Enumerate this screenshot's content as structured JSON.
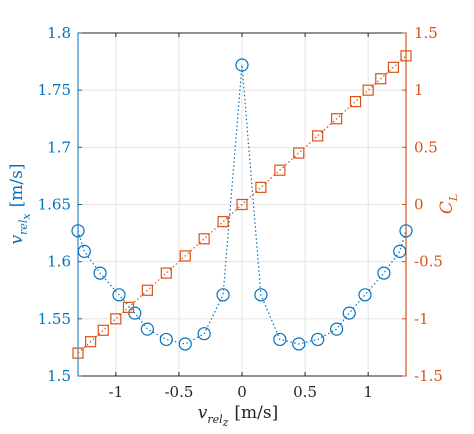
{
  "chart_data": {
    "type": "line",
    "title": "",
    "xlabel": {
      "var": "v",
      "sub": "rel",
      "subsub": "z",
      "unit": "[m/s]"
    },
    "ylabel_left": {
      "var": "v",
      "sub": "rel",
      "subsub": "x",
      "unit": "[m/s]"
    },
    "ylabel_right": {
      "var": "C",
      "sub": "L"
    },
    "xlim": [
      -1.3,
      1.3
    ],
    "ylim_left": [
      1.5,
      1.8
    ],
    "ylim_right": [
      -1.5,
      1.5
    ],
    "xticks": [
      -1,
      -0.5,
      0,
      0.5,
      1
    ],
    "xtick_labels": [
      "-1",
      "-0.5",
      "0",
      "0.5",
      "1"
    ],
    "yticks_left": [
      1.5,
      1.55,
      1.6,
      1.65,
      1.7,
      1.75,
      1.8
    ],
    "ytick_labels_left": [
      "1.5",
      "1.55",
      "1.6",
      "1.65",
      "1.7",
      "1.75",
      "1.8"
    ],
    "yticks_right": [
      -1.5,
      -1,
      -0.5,
      0,
      0.5,
      1,
      1.5
    ],
    "ytick_labels_right": [
      "-1.5",
      "-1",
      "-0.5",
      "0",
      "0.5",
      "1",
      "1.5"
    ],
    "grid": true,
    "colors": {
      "left": "#0072BD",
      "right": "#D95319",
      "grid": "#e4e4e4"
    },
    "series": [
      {
        "axis": "left",
        "marker": "circle",
        "line": "dotted",
        "x": [
          -1.3,
          -1.25,
          -1.125,
          -0.975,
          -0.85,
          -0.75,
          -0.6,
          -0.45,
          -0.3,
          -0.15,
          0,
          0.15,
          0.3,
          0.45,
          0.6,
          0.75,
          0.85,
          0.975,
          1.125,
          1.25,
          1.3
        ],
        "y": [
          1.627,
          1.609,
          1.59,
          1.571,
          1.555,
          1.541,
          1.532,
          1.528,
          1.537,
          1.571,
          1.772,
          1.571,
          1.532,
          1.528,
          1.532,
          1.541,
          1.555,
          1.571,
          1.59,
          1.609,
          1.627
        ]
      },
      {
        "axis": "right",
        "marker": "square",
        "line": "dotted",
        "x": [
          -1.3,
          -1.2,
          -1.1,
          -1.0,
          -0.9,
          -0.75,
          -0.6,
          -0.45,
          -0.3,
          -0.15,
          0,
          0.15,
          0.3,
          0.45,
          0.6,
          0.75,
          0.9,
          1.0,
          1.1,
          1.2,
          1.3
        ],
        "y": [
          -1.3,
          -1.2,
          -1.1,
          -1.0,
          -0.9,
          -0.75,
          -0.6,
          -0.45,
          -0.3,
          -0.15,
          0,
          0.15,
          0.3,
          0.45,
          0.6,
          0.75,
          0.9,
          1.0,
          1.1,
          1.2,
          1.3
        ]
      }
    ]
  }
}
